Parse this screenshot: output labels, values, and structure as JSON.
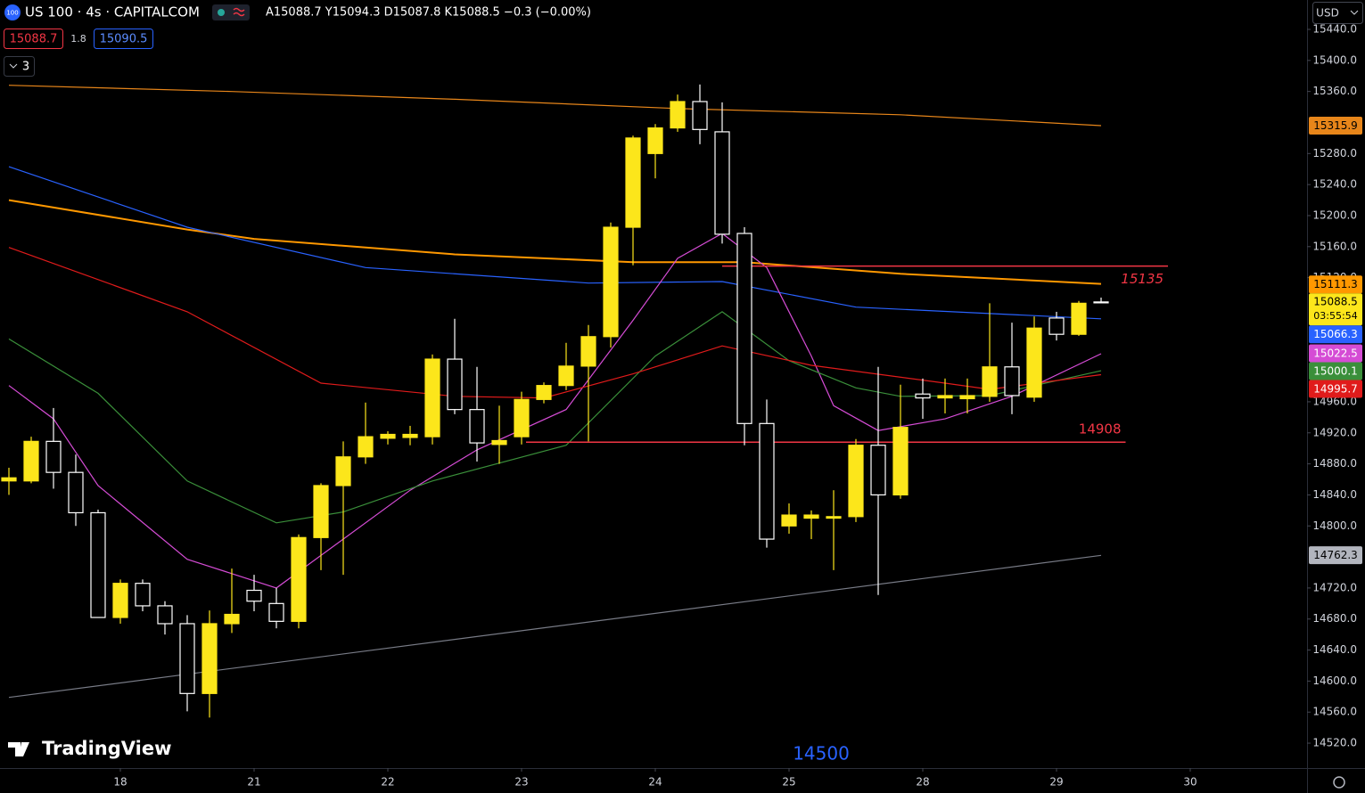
{
  "header": {
    "logo": "100",
    "symbol": "US 100 · 4s · CAPITALCOM",
    "ohlc": "A15088.7 Y15094.3 D15087.8 K15088.5 −0.3 (−0.00%)",
    "bid": "15088.7",
    "spread": "1.8",
    "ask": "15090.5",
    "indicators": "3",
    "currency": "USD",
    "brand": "TradingView"
  },
  "chart_data": {
    "type": "candlestick",
    "x": [
      0,
      1,
      2,
      3,
      4,
      5,
      6,
      7,
      8,
      9,
      10,
      11,
      12,
      13,
      14,
      15,
      16,
      17,
      18,
      19,
      20,
      21,
      22,
      23,
      24,
      25,
      26,
      27,
      28,
      29,
      30,
      31,
      32,
      33,
      34,
      35,
      36,
      37,
      38,
      39,
      40,
      41,
      42,
      43,
      44,
      45,
      46,
      47,
      48,
      49
    ],
    "open": [
      14858,
      14858,
      14909,
      14869,
      14817,
      14682,
      14726,
      14697,
      14674,
      14584,
      14674,
      14717,
      14700,
      14677,
      14785,
      14852,
      14889,
      14913,
      14914,
      14915,
      15015,
      14950,
      14905,
      14915,
      14963,
      14981,
      15006,
      15044,
      15185,
      15280,
      15313,
      15347,
      15308,
      15177,
      14932,
      14800,
      14810,
      14810,
      14812,
      14904,
      14840,
      14970,
      14965,
      14964,
      14967,
      15005,
      14966,
      15068,
      15047,
      15088.7
    ],
    "high": [
      14875,
      14915,
      14952,
      14892,
      14821,
      14731,
      14731,
      14703,
      14685,
      14691,
      14745,
      14737,
      14720,
      14789,
      14855,
      14909,
      14959,
      14922,
      14929,
      15021,
      15067,
      15005,
      14955,
      14973,
      14985,
      15036,
      15059,
      15191,
      15303,
      15318,
      15356,
      15369,
      15346,
      15185,
      14963,
      14829,
      14820,
      14846,
      14912,
      15005,
      14982,
      14990,
      14990,
      14990,
      15087,
      15062,
      15070,
      15076,
      15090,
      15094.3
    ],
    "low": [
      14840,
      14855,
      14848,
      14800,
      14682,
      14674,
      14690,
      14660,
      14561,
      14553,
      14662,
      14690,
      14668,
      14668,
      14743,
      14737,
      14880,
      14905,
      14904,
      14905,
      14944,
      14883,
      14880,
      14905,
      14958,
      14975,
      14909,
      15030,
      15136,
      15248,
      15308,
      15292,
      15164,
      14904,
      14772,
      14790,
      14783,
      14743,
      14805,
      14711,
      14835,
      14938,
      14945,
      14945,
      14960,
      14944,
      14960,
      15039,
      15045,
      15087.8
    ],
    "close": [
      14862,
      14909,
      14869,
      14817,
      14682,
      14726,
      14697,
      14674,
      14584,
      14674,
      14686,
      14703,
      14677,
      14785,
      14852,
      14889,
      14915,
      14918,
      14918,
      15015,
      14950,
      14907,
      14910,
      14963,
      14981,
      15006,
      15044,
      15185,
      15300,
      15313,
      15347,
      15311,
      15176,
      14932,
      14783,
      14814,
      14814,
      14812,
      14904,
      14840,
      14927,
      14965,
      14968,
      14968,
      15005,
      14968,
      15055,
      15047,
      15087,
      15088.5
    ],
    "up_color": "#fce61b",
    "down_color": "#ffffff",
    "countdown": "03:55:54",
    "series": [
      {
        "color": "#e8861a",
        "width": 1.2,
        "x": [
          0,
          10,
          20,
          30,
          40,
          49
        ],
        "values": [
          15368,
          15360,
          15350,
          15338,
          15330,
          15316
        ],
        "last_value": 15315.9
      },
      {
        "color": "#ff9800",
        "width": 2,
        "x": [
          0,
          8,
          11,
          20,
          28,
          33,
          40,
          49
        ],
        "values": [
          15220,
          15182,
          15170,
          15150,
          15140,
          15140,
          15125,
          15112
        ],
        "last_value": 15111.3
      },
      {
        "color": "#2962ff",
        "width": 1.2,
        "x": [
          0,
          8,
          16,
          26,
          32,
          38,
          49
        ],
        "values": [
          15263,
          15185,
          15133,
          15113,
          15115,
          15082,
          15067
        ],
        "last_value": 15066.3
      },
      {
        "color": "#d54cd5",
        "width": 1.2,
        "x": [
          0,
          2,
          4,
          8,
          12,
          18,
          21,
          25,
          28,
          30,
          32,
          34,
          36,
          37,
          39,
          42,
          45,
          49
        ],
        "values": [
          14981,
          14938,
          14852,
          14757,
          14720,
          14846,
          14898,
          14950,
          15065,
          15145,
          15177,
          15133,
          15019,
          14955,
          14923,
          14938,
          14967,
          15022
        ],
        "last_value": 15022.5
      },
      {
        "color": "#3a8f3a",
        "width": 1.2,
        "x": [
          0,
          4,
          8,
          12,
          15,
          19,
          25,
          29,
          32,
          35,
          38,
          40,
          44,
          49
        ],
        "values": [
          15041,
          14971,
          14858,
          14804,
          14818,
          14858,
          14904,
          15019,
          15076,
          15013,
          14978,
          14967,
          14968,
          15000
        ],
        "last_value": 15000.1
      },
      {
        "color": "#e01b1b",
        "width": 1.2,
        "x": [
          0,
          8,
          14,
          20,
          24,
          28,
          32,
          36,
          42,
          44,
          49
        ],
        "values": [
          15159,
          15076,
          14984,
          14967,
          14965,
          14996,
          15032,
          15007,
          14984,
          14976,
          14995
        ],
        "last_value": 14995.7
      },
      {
        "color": "#787b86",
        "width": 1.2,
        "x": [
          0,
          49
        ],
        "values": [
          14579,
          14762
        ],
        "last_value": 14762.3
      }
    ],
    "levels": [
      {
        "value": 15135,
        "color": "#f23645",
        "x": [
          32,
          52
        ]
      },
      {
        "value": 14908,
        "color": "#f23645",
        "x": [
          23.2,
          50.1
        ]
      }
    ],
    "annotations": [
      {
        "text": "14500",
        "color": "#2962ff"
      }
    ],
    "xlim": [
      -0.4,
      58.24
    ],
    "xticks": [
      {
        "value": 5,
        "label": "18"
      },
      {
        "value": 11,
        "label": "21"
      },
      {
        "value": 17,
        "label": "22"
      },
      {
        "value": 23,
        "label": "23"
      },
      {
        "value": 29,
        "label": "24"
      },
      {
        "value": 35,
        "label": "25"
      },
      {
        "value": 41,
        "label": "28"
      },
      {
        "value": 47,
        "label": "29"
      },
      {
        "value": 53,
        "label": "30"
      }
    ],
    "ylim": [
      14487.9,
      15477.9
    ],
    "yticks": [
      {
        "value": 15440,
        "label": "15440.0"
      },
      {
        "value": 15400,
        "label": "15400.0"
      },
      {
        "value": 15360,
        "label": "15360.0"
      },
      {
        "value": 15280,
        "label": "15280.0"
      },
      {
        "value": 15240,
        "label": "15240.0"
      },
      {
        "value": 15200,
        "label": "15200.0"
      },
      {
        "value": 15160,
        "label": "15160.0"
      },
      {
        "value": 15120,
        "label": "15120.0"
      },
      {
        "value": 14960,
        "label": "14960.0"
      },
      {
        "value": 14920,
        "label": "14920.0"
      },
      {
        "value": 14880,
        "label": "14880.0"
      },
      {
        "value": 14840,
        "label": "14840.0"
      },
      {
        "value": 14800,
        "label": "14800.0"
      },
      {
        "value": 14720,
        "label": "14720.0"
      },
      {
        "value": 14680,
        "label": "14680.0"
      },
      {
        "value": 14640,
        "label": "14640.0"
      },
      {
        "value": 14600,
        "label": "14600.0"
      },
      {
        "value": 14560,
        "label": "14560.0"
      },
      {
        "value": 14520,
        "label": "14520.0"
      }
    ]
  }
}
